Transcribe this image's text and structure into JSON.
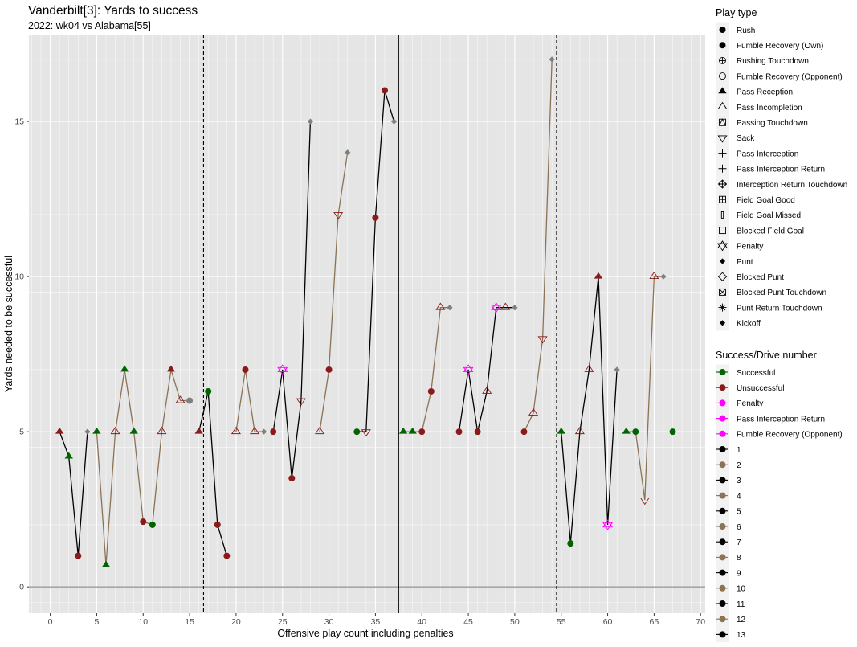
{
  "colors": {
    "panel_bg": "#e5e5e5",
    "grid_major": "#ffffff",
    "successful": "#006400",
    "unsuccessful": "#8b1a1a",
    "penalty": "#ff00ff",
    "neutral": "#808080",
    "drive_odd": "#000000",
    "drive_even": "#8b7355"
  },
  "chart_data": {
    "type": "line",
    "title": "Vanderbilt[3]: Yards to success",
    "subtitle": "2022: wk04 vs Alabama[55]",
    "xlabel": "Offensive play count including penalties",
    "ylabel": "Yards needed to be successful",
    "xlim": [
      -2.3,
      70.5
    ],
    "ylim": [
      -0.85,
      17.8
    ],
    "x_ticks": [
      0,
      5,
      10,
      15,
      20,
      25,
      30,
      35,
      40,
      45,
      50,
      55,
      60,
      65,
      70
    ],
    "x_tick_labels": [
      "0",
      "5",
      "10",
      "15",
      "20",
      "25",
      "30",
      "35",
      "40",
      "45",
      "50",
      "55",
      "60",
      "65",
      "70"
    ],
    "y_ticks": [
      0,
      5,
      10,
      15
    ],
    "y_tick_labels": [
      "0",
      "5",
      "10",
      "15"
    ],
    "grid": true,
    "legend_position": "right",
    "vlines": [
      {
        "x": 16.5,
        "style": "dashed"
      },
      {
        "x": 37.5,
        "style": "solid"
      },
      {
        "x": 54.5,
        "style": "dashed"
      }
    ],
    "drives": [
      {
        "drive": 1,
        "points": [
          {
            "x": 1,
            "y": 5,
            "shape": "pass-reception",
            "result": "unsuccessful"
          },
          {
            "x": 2,
            "y": 4.2,
            "shape": "pass-reception",
            "result": "successful"
          },
          {
            "x": 3,
            "y": 1,
            "shape": "rush",
            "result": "unsuccessful"
          },
          {
            "x": 4,
            "y": 5,
            "shape": "punt",
            "result": "neutral"
          }
        ]
      },
      {
        "drive": 2,
        "points": [
          {
            "x": 5,
            "y": 5,
            "shape": "pass-reception",
            "result": "successful"
          },
          {
            "x": 6,
            "y": 0.7,
            "shape": "pass-reception",
            "result": "successful"
          },
          {
            "x": 7,
            "y": 5,
            "shape": "pass-incompletion",
            "result": "unsuccessful"
          },
          {
            "x": 8,
            "y": 7,
            "shape": "pass-reception",
            "result": "successful"
          },
          {
            "x": 9,
            "y": 5,
            "shape": "pass-reception",
            "result": "successful"
          },
          {
            "x": 10,
            "y": 2.1,
            "shape": "rush",
            "result": "unsuccessful"
          },
          {
            "x": 11,
            "y": 2,
            "shape": "rush",
            "result": "successful"
          },
          {
            "x": 12,
            "y": 5,
            "shape": "pass-incompletion",
            "result": "unsuccessful"
          },
          {
            "x": 13,
            "y": 7,
            "shape": "pass-reception",
            "result": "unsuccessful"
          },
          {
            "x": 14,
            "y": 6,
            "shape": "pass-incompletion",
            "result": "unsuccessful"
          },
          {
            "x": 15,
            "y": 6,
            "shape": "blocked-field-goal",
            "result": "neutral"
          }
        ]
      },
      {
        "drive": 3,
        "points": [
          {
            "x": 16,
            "y": 5,
            "shape": "pass-reception",
            "result": "unsuccessful"
          },
          {
            "x": 17,
            "y": 6.3,
            "shape": "rush",
            "result": "successful"
          },
          {
            "x": 18,
            "y": 2,
            "shape": "rush",
            "result": "unsuccessful"
          },
          {
            "x": 19,
            "y": 1,
            "shape": "rush",
            "result": "unsuccessful"
          }
        ]
      },
      {
        "drive": 4,
        "points": [
          {
            "x": 20,
            "y": 5,
            "shape": "pass-incompletion",
            "result": "unsuccessful"
          },
          {
            "x": 21,
            "y": 7,
            "shape": "rush",
            "result": "unsuccessful"
          },
          {
            "x": 22,
            "y": 5,
            "shape": "pass-incompletion",
            "result": "unsuccessful"
          },
          {
            "x": 23,
            "y": 5,
            "shape": "punt",
            "result": "neutral"
          }
        ]
      },
      {
        "drive": 5,
        "points": [
          {
            "x": 24,
            "y": 5,
            "shape": "rush",
            "result": "unsuccessful"
          },
          {
            "x": 25,
            "y": 7,
            "shape": "penalty",
            "result": "penalty"
          },
          {
            "x": 26,
            "y": 3.5,
            "shape": "rush",
            "result": "unsuccessful"
          },
          {
            "x": 27,
            "y": 6,
            "shape": "sack",
            "result": "unsuccessful"
          },
          {
            "x": 28,
            "y": 15,
            "shape": "punt",
            "result": "neutral"
          }
        ]
      },
      {
        "drive": 6,
        "points": [
          {
            "x": 29,
            "y": 5,
            "shape": "pass-incompletion",
            "result": "unsuccessful"
          },
          {
            "x": 30,
            "y": 7,
            "shape": "rush",
            "result": "unsuccessful"
          },
          {
            "x": 31,
            "y": 12,
            "shape": "sack",
            "result": "unsuccessful"
          },
          {
            "x": 32,
            "y": 14,
            "shape": "punt",
            "result": "neutral"
          }
        ]
      },
      {
        "drive": 7,
        "points": [
          {
            "x": 33,
            "y": 5,
            "shape": "rush",
            "result": "successful"
          },
          {
            "x": 34,
            "y": 5,
            "shape": "sack",
            "result": "unsuccessful"
          },
          {
            "x": 35,
            "y": 11.9,
            "shape": "rush",
            "result": "unsuccessful"
          },
          {
            "x": 36,
            "y": 16,
            "shape": "rush",
            "result": "unsuccessful"
          },
          {
            "x": 37,
            "y": 15,
            "shape": "punt",
            "result": "neutral"
          }
        ]
      },
      {
        "drive": 8,
        "points": [
          {
            "x": 38,
            "y": 5,
            "shape": "pass-reception",
            "result": "successful"
          },
          {
            "x": 39,
            "y": 5,
            "shape": "pass-reception",
            "result": "successful"
          },
          {
            "x": 40,
            "y": 5,
            "shape": "rush",
            "result": "unsuccessful"
          },
          {
            "x": 41,
            "y": 6.3,
            "shape": "rush",
            "result": "unsuccessful"
          },
          {
            "x": 42,
            "y": 9,
            "shape": "pass-incompletion",
            "result": "unsuccessful"
          },
          {
            "x": 43,
            "y": 9,
            "shape": "punt",
            "result": "neutral"
          }
        ]
      },
      {
        "drive": 9,
        "points": [
          {
            "x": 44,
            "y": 5,
            "shape": "rush",
            "result": "unsuccessful"
          },
          {
            "x": 45,
            "y": 7,
            "shape": "penalty",
            "result": "penalty"
          },
          {
            "x": 46,
            "y": 5,
            "shape": "rush",
            "result": "unsuccessful"
          },
          {
            "x": 47,
            "y": 6.3,
            "shape": "pass-incompletion",
            "result": "unsuccessful"
          },
          {
            "x": 48,
            "y": 9,
            "shape": "penalty",
            "result": "penalty"
          },
          {
            "x": 49,
            "y": 9,
            "shape": "pass-incompletion",
            "result": "unsuccessful"
          },
          {
            "x": 50,
            "y": 9,
            "shape": "punt",
            "result": "neutral"
          }
        ]
      },
      {
        "drive": 10,
        "points": [
          {
            "x": 51,
            "y": 5,
            "shape": "rush",
            "result": "unsuccessful"
          },
          {
            "x": 52,
            "y": 5.6,
            "shape": "pass-incompletion",
            "result": "unsuccessful"
          },
          {
            "x": 53,
            "y": 8,
            "shape": "sack",
            "result": "unsuccessful"
          },
          {
            "x": 54,
            "y": 17,
            "shape": "punt",
            "result": "neutral"
          }
        ]
      },
      {
        "drive": 11,
        "points": [
          {
            "x": 55,
            "y": 5,
            "shape": "pass-reception",
            "result": "successful"
          },
          {
            "x": 56,
            "y": 1.4,
            "shape": "rush",
            "result": "successful"
          },
          {
            "x": 57,
            "y": 5,
            "shape": "pass-incompletion",
            "result": "unsuccessful"
          },
          {
            "x": 58,
            "y": 7,
            "shape": "pass-incompletion",
            "result": "unsuccessful"
          },
          {
            "x": 59,
            "y": 10,
            "shape": "pass-reception",
            "result": "unsuccessful"
          },
          {
            "x": 60,
            "y": 2,
            "shape": "penalty",
            "result": "penalty"
          },
          {
            "x": 61,
            "y": 7,
            "shape": "punt",
            "result": "neutral"
          }
        ]
      },
      {
        "drive": 12,
        "points": [
          {
            "x": 62,
            "y": 5,
            "shape": "pass-reception",
            "result": "successful"
          },
          {
            "x": 63,
            "y": 5,
            "shape": "rush",
            "result": "successful"
          },
          {
            "x": 64,
            "y": 2.8,
            "shape": "sack",
            "result": "unsuccessful"
          },
          {
            "x": 65,
            "y": 10,
            "shape": "pass-incompletion",
            "result": "unsuccessful"
          },
          {
            "x": 66,
            "y": 10,
            "shape": "punt",
            "result": "neutral"
          }
        ]
      },
      {
        "drive": 13,
        "points": [
          {
            "x": 67,
            "y": 5,
            "shape": "rush",
            "result": "successful"
          }
        ]
      }
    ],
    "legend_play_type": {
      "title": "Play type",
      "items": [
        {
          "label": "Rush",
          "shape": "rush"
        },
        {
          "label": "Fumble Recovery (Own)",
          "shape": "rush"
        },
        {
          "label": "Rushing Touchdown",
          "shape": "circle-plus"
        },
        {
          "label": "Fumble Recovery (Opponent)",
          "shape": "circle-open"
        },
        {
          "label": "Pass Reception",
          "shape": "pass-reception"
        },
        {
          "label": "Pass Incompletion",
          "shape": "pass-incompletion"
        },
        {
          "label": "Passing Touchdown",
          "shape": "square-triangle"
        },
        {
          "label": "Sack",
          "shape": "sack"
        },
        {
          "label": "Pass Interception",
          "shape": "plus"
        },
        {
          "label": "Pass Interception Return",
          "shape": "plus"
        },
        {
          "label": "Interception Return Touchdown",
          "shape": "diamond-plus"
        },
        {
          "label": "Field Goal Good",
          "shape": "square-plus"
        },
        {
          "label": "Field Goal Missed",
          "shape": "thin-rect"
        },
        {
          "label": "Blocked Field Goal",
          "shape": "square-open"
        },
        {
          "label": "Penalty",
          "shape": "penalty"
        },
        {
          "label": "Punt",
          "shape": "punt"
        },
        {
          "label": "Blocked Punt",
          "shape": "diamond-open"
        },
        {
          "label": "Blocked Punt Touchdown",
          "shape": "square-x"
        },
        {
          "label": "Punt Return Touchdown",
          "shape": "asterisk"
        },
        {
          "label": "Kickoff",
          "shape": "punt"
        }
      ]
    },
    "legend_success": {
      "title": "Success/Drive number",
      "items": [
        {
          "label": "Successful",
          "color_key": "successful"
        },
        {
          "label": "Unsuccessful",
          "color_key": "unsuccessful"
        },
        {
          "label": "Penalty",
          "color_key": "penalty"
        },
        {
          "label": "Pass Interception Return",
          "color_key": "penalty"
        },
        {
          "label": "Fumble Recovery (Opponent)",
          "color_key": "penalty"
        },
        {
          "label": "1",
          "color_key": "drive_odd"
        },
        {
          "label": "2",
          "color_key": "drive_even"
        },
        {
          "label": "3",
          "color_key": "drive_odd"
        },
        {
          "label": "4",
          "color_key": "drive_even"
        },
        {
          "label": "5",
          "color_key": "drive_odd"
        },
        {
          "label": "6",
          "color_key": "drive_even"
        },
        {
          "label": "7",
          "color_key": "drive_odd"
        },
        {
          "label": "8",
          "color_key": "drive_even"
        },
        {
          "label": "9",
          "color_key": "drive_odd"
        },
        {
          "label": "10",
          "color_key": "drive_even"
        },
        {
          "label": "11",
          "color_key": "drive_odd"
        },
        {
          "label": "12",
          "color_key": "drive_even"
        },
        {
          "label": "13",
          "color_key": "drive_odd"
        }
      ]
    }
  }
}
